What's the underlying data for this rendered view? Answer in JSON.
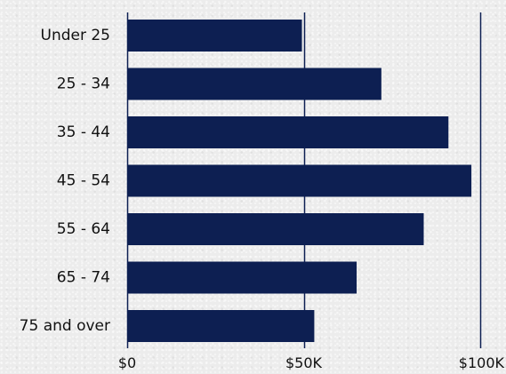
{
  "chart_data": {
    "type": "bar",
    "orientation": "horizontal",
    "categories": [
      "Under 25",
      "25 - 34",
      "35 - 44",
      "45 - 54",
      "55 - 64",
      "65 - 74",
      "75 and over"
    ],
    "values": [
      49500,
      72000,
      91000,
      97500,
      84000,
      65000,
      53000
    ],
    "xlim": [
      0,
      100000
    ],
    "xticks": [
      0,
      50000,
      100000
    ],
    "xtick_labels": [
      "$0",
      "$50K",
      "$100K"
    ],
    "title": "",
    "xlabel": "",
    "ylabel": "",
    "grid": "vertical",
    "bar_color": "#0d1f52",
    "gridline_color": "#0d1f52",
    "text_color": "#111111"
  }
}
